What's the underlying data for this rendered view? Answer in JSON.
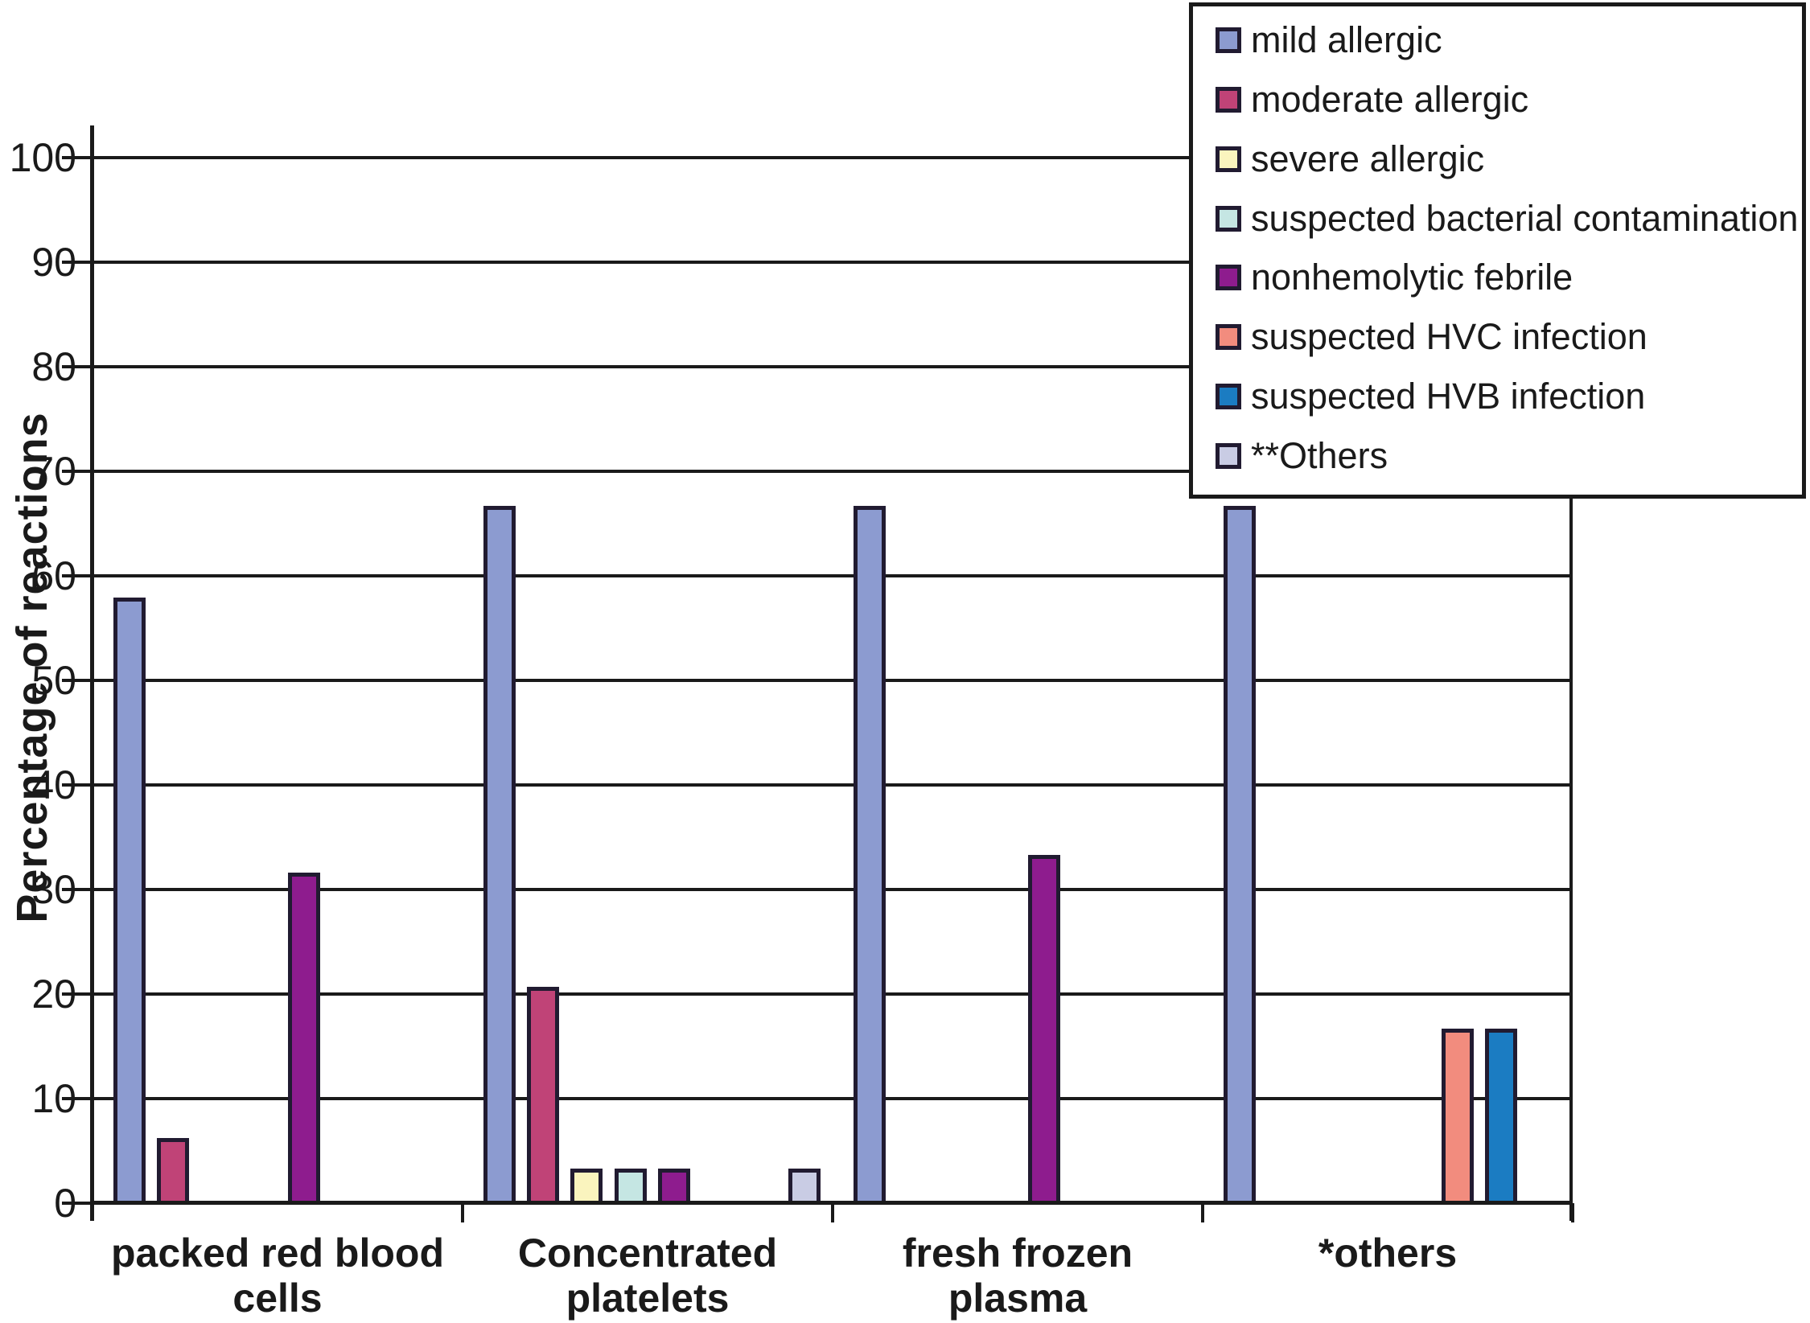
{
  "chart_data": {
    "type": "bar",
    "title": "",
    "xlabel": "",
    "ylabel": "Percentage of reactions",
    "ylim": [
      0,
      100
    ],
    "ytick_interval": 10,
    "ytick_labels": [
      "0",
      "10",
      "20",
      "30",
      "40",
      "50",
      "60",
      "70",
      "80",
      "90",
      "100"
    ],
    "grid": "horizontal, every 10 units",
    "legend_position": "top-right overlay box",
    "categories": [
      "packed red blood\ncells",
      "Concentrated\nplatelets",
      "fresh frozen\nplasma",
      "*others"
    ],
    "series": [
      {
        "name": "mild allergic",
        "color": "#8C9BD0",
        "values": [
          57.9,
          66.7,
          66.7,
          66.7
        ]
      },
      {
        "name": "moderate allergic",
        "color": "#C04377",
        "values": [
          6.2,
          20.7,
          0,
          0
        ]
      },
      {
        "name": "severe allergic",
        "color": "#FAF4BE",
        "values": [
          0,
          3.3,
          0,
          0
        ]
      },
      {
        "name": "suspected bacterial contamination",
        "color": "#C5E6E3",
        "values": [
          0,
          3.3,
          0,
          0
        ]
      },
      {
        "name": "nonhemolytic febrile",
        "color": "#8E1C8E",
        "values": [
          31.6,
          3.3,
          33.3,
          0
        ]
      },
      {
        "name": "suspected HVC infection",
        "color": "#F28C7E",
        "values": [
          0,
          0,
          0,
          16.7
        ]
      },
      {
        "name": "suspected HVB infection",
        "color": "#1B7CC2",
        "values": [
          0,
          0,
          0,
          16.7
        ]
      },
      {
        "name": "**Others",
        "color": "#C9CCE4",
        "values": [
          0,
          3.3,
          0,
          0
        ]
      }
    ]
  },
  "axis": {
    "y_title": "Percentage of reactions"
  }
}
